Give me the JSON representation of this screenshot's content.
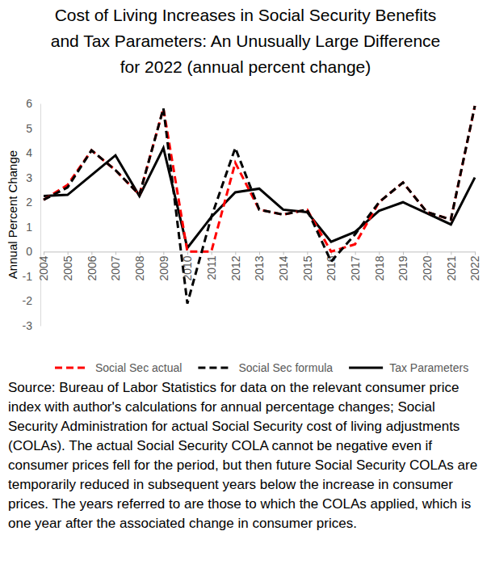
{
  "chart_data": {
    "type": "line",
    "title": "Cost of Living Increases in Social Security Benefits and Tax Parameters: An Unusually Large Difference for 2022 (annual percent change)",
    "y_label": "Annual Percent Change",
    "categories": [
      "2004",
      "2005",
      "2006",
      "2007",
      "2008",
      "2009",
      "2010",
      "2011",
      "2012",
      "2013",
      "2014",
      "2015",
      "2016",
      "2017",
      "2018",
      "2019",
      "2020",
      "2021",
      "2022"
    ],
    "series": [
      {
        "name": "Social Sec actual",
        "color": "#ff0000",
        "line_style": "dashed",
        "values": [
          2.1,
          2.7,
          4.1,
          3.3,
          2.3,
          5.8,
          0,
          0,
          3.6,
          1.7,
          1.5,
          1.7,
          0,
          0.3,
          2.0,
          2.8,
          1.6,
          1.3,
          5.9
        ]
      },
      {
        "name": "Social Sec formula",
        "color": "#000000",
        "line_style": "dashed",
        "values": [
          2.1,
          2.6,
          4.1,
          3.3,
          2.3,
          5.8,
          -2.1,
          1.4,
          4.2,
          1.7,
          1.5,
          1.7,
          -0.4,
          0.7,
          2.0,
          2.8,
          1.6,
          1.3,
          5.9
        ]
      },
      {
        "name": "Tax Parameters",
        "color": "#000000",
        "line_style": "solid",
        "values": [
          2.25,
          2.3,
          3.1,
          3.9,
          2.25,
          4.2,
          0.15,
          1.4,
          2.4,
          2.55,
          1.7,
          1.6,
          0.4,
          0.8,
          1.65,
          2.0,
          1.55,
          1.1,
          3.0
        ]
      }
    ],
    "ylim": [
      -3,
      6
    ],
    "yticks": [
      -3,
      -2,
      -1,
      0,
      1,
      2,
      3,
      4,
      5,
      6
    ],
    "grid": false,
    "legend": "bottom",
    "note": "Source: Bureau of Labor Statistics for data on the relevant consumer price index with author's calculations for annual percentage changes; Social Security Administration for actual Social Security cost of living adjustments (COLAs). The actual Social Security COLA cannot be negative even if consumer prices fell for the period, but then future Social Security COLAs are temporarily reduced in subsequent years below the increase in consumer prices. The years referred to are those to which the COLAs applied, which is one year after the associated change in consumer prices."
  }
}
